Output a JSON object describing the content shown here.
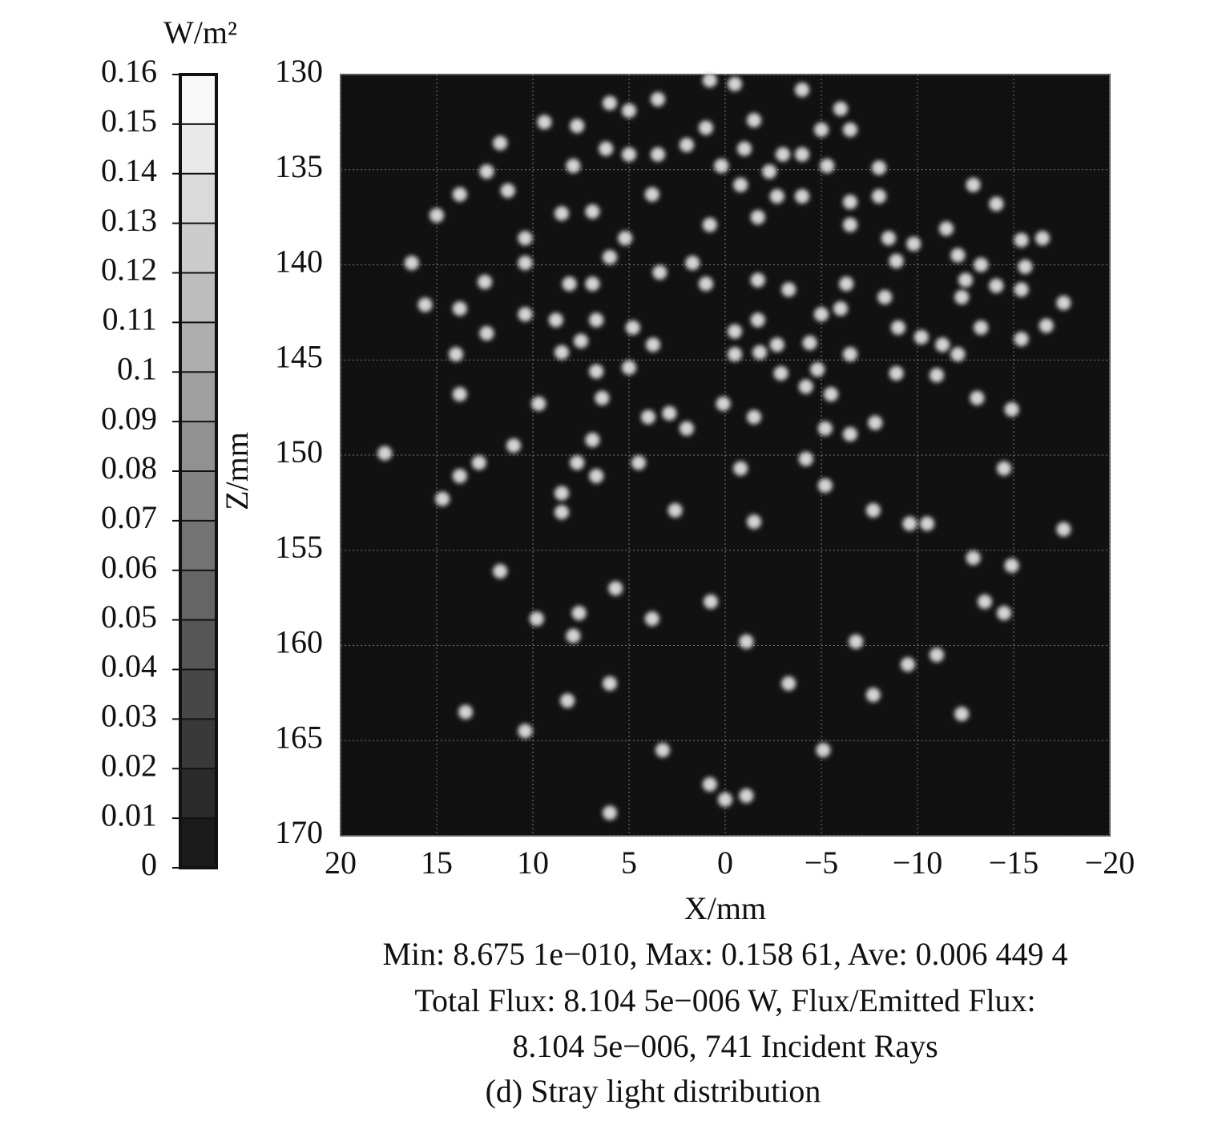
{
  "chart_data": {
    "type": "scatter",
    "xlabel": "X/mm",
    "ylabel": "Z/mm",
    "xlim": [
      20,
      -20
    ],
    "ylim": [
      170,
      130
    ],
    "xticks": [
      20,
      15,
      10,
      5,
      0,
      {
        "value": -5,
        "label": "−5"
      },
      {
        "value": -10,
        "label": "−10"
      },
      {
        "value": -15,
        "label": "−15"
      },
      {
        "value": -20,
        "label": "−20"
      }
    ],
    "yticks": [
      130,
      135,
      140,
      145,
      150,
      155,
      160,
      165,
      170
    ],
    "grid": true,
    "background": "#111111",
    "colorbar": {
      "label": "W/m²",
      "lim": [
        0,
        0.16
      ],
      "ticks": [
        0,
        0.01,
        0.02,
        0.03,
        0.04,
        0.05,
        0.06,
        0.07,
        0.08,
        0.09,
        0.1,
        0.11,
        0.12,
        0.13,
        0.14,
        0.15,
        0.16
      ]
    },
    "series": [
      {
        "color": "#d4d4d4",
        "x": [
          0.8,
          -0.5,
          -4,
          6,
          3.5,
          9.4,
          7.7,
          5,
          1,
          -1.5,
          -6,
          -6.5,
          -5,
          11.7,
          6.2,
          5,
          3.5,
          2,
          -1,
          -3,
          -4,
          -5.3,
          -8,
          12.4,
          7.9,
          0.2,
          -0.8,
          -2.3,
          11.3,
          13.8,
          15,
          3.8,
          -2.7,
          -4,
          -6.5,
          -8,
          -12.9,
          -14.1,
          8.5,
          6.9,
          -1.7,
          -11.5,
          -6.5,
          0.8,
          5.2,
          10.4,
          -9.8,
          -8.5,
          -15.4,
          -16.5,
          16.3,
          10.4,
          6,
          1.7,
          -8.9,
          -12.1,
          -13.3,
          -15.6,
          3.4,
          12.5,
          6.9,
          8.1,
          1,
          -1.7,
          -3.3,
          -6.3,
          -12.5,
          -14.1,
          -15.4,
          15.6,
          13.8,
          -6,
          -8.3,
          -12.3,
          -17.6,
          10.4,
          8.8,
          6.7,
          -1.7,
          -5,
          -13.3,
          12.4,
          4.8,
          -0.5,
          -9,
          -10.2,
          -16.7,
          -15.4,
          8.5,
          7.5,
          3.75,
          -2.7,
          -1.8,
          -4.4,
          -11.3,
          -12.1,
          14,
          -0.5,
          -6.5,
          6.7,
          5,
          -2.9,
          -4.8,
          -8.9,
          -11,
          13.8,
          -4.2,
          -5.5,
          6.4,
          -13.1,
          9.7,
          0.1,
          -14.9,
          4,
          2.9,
          -1.5,
          2,
          -5.2,
          -6.5,
          -7.8,
          6.9,
          17.7,
          11,
          12.8,
          13.8,
          7.7,
          6.7,
          4.5,
          -0.8,
          -4.2,
          -14.5,
          -5.2,
          14.7,
          8.5,
          8.5,
          2.6,
          -7.7,
          -1.5,
          -9.6,
          -10.5,
          -17.6,
          -12.9,
          -14.9,
          11.7,
          5.7,
          0.75,
          -13.5,
          -14.5,
          9.8,
          7.6,
          3.8,
          7.9,
          -1.1,
          -6.8,
          -11,
          -9.5,
          6,
          -3.3,
          -7.7,
          8.2,
          13.5,
          -12.3,
          10.4,
          3.25,
          -5.1,
          0.8,
          0,
          -1.1,
          6
        ],
        "values": [
          130.3,
          130.5,
          130.8,
          131.5,
          131.3,
          132.5,
          132.7,
          131.9,
          132.8,
          132.4,
          131.8,
          132.9,
          132.9,
          133.6,
          133.9,
          134.2,
          134.2,
          133.7,
          133.9,
          134.2,
          134.2,
          134.8,
          134.9,
          135.1,
          134.8,
          134.8,
          135.8,
          135.1,
          136.1,
          136.3,
          137.4,
          136.3,
          136.4,
          136.4,
          136.7,
          136.4,
          135.8,
          136.8,
          137.3,
          137.2,
          137.5,
          138.1,
          137.9,
          137.9,
          138.6,
          138.6,
          138.9,
          138.6,
          138.7,
          138.6,
          139.9,
          139.9,
          139.6,
          139.9,
          139.8,
          139.5,
          140,
          140.1,
          140.4,
          140.9,
          141,
          141,
          141,
          140.8,
          141.3,
          141,
          140.8,
          141.1,
          141.3,
          142.1,
          142.3,
          142.3,
          141.7,
          141.7,
          142,
          142.6,
          142.9,
          142.9,
          142.9,
          142.6,
          143.3,
          143.6,
          143.3,
          143.5,
          143.3,
          143.8,
          143.2,
          143.9,
          144.6,
          144,
          144.2,
          144.2,
          144.6,
          144.1,
          144.2,
          144.7,
          144.7,
          144.7,
          144.7,
          145.6,
          145.4,
          145.7,
          145.5,
          145.7,
          145.8,
          146.8,
          146.4,
          146.8,
          147,
          147,
          147.3,
          147.3,
          147.6,
          148,
          147.8,
          148,
          148.6,
          148.6,
          148.9,
          148.3,
          149.2,
          149.9,
          149.5,
          150.4,
          151.1,
          150.4,
          151.1,
          150.4,
          150.7,
          150.2,
          150.7,
          151.6,
          152.3,
          152,
          153,
          152.9,
          152.9,
          153.5,
          153.6,
          153.6,
          153.9,
          155.4,
          155.8,
          156.1,
          157,
          157.7,
          157.7,
          158.3,
          158.6,
          158.3,
          158.6,
          159.5,
          159.8,
          159.8,
          160.5,
          161,
          162,
          162,
          162.6,
          162.9,
          163.5,
          163.6,
          164.5,
          165.5,
          165.5,
          167.3,
          168.1,
          167.9,
          168.8
        ]
      }
    ],
    "stats": [
      "Min: 8.675 1e−010, Max: 0.158 61, Ave: 0.006 449 4",
      "Total Flux: 8.104 5e−006 W, Flux/Emitted Flux:",
      "8.104 5e−006, 741 Incident Rays"
    ],
    "caption": "(d) Stray light distribution"
  }
}
